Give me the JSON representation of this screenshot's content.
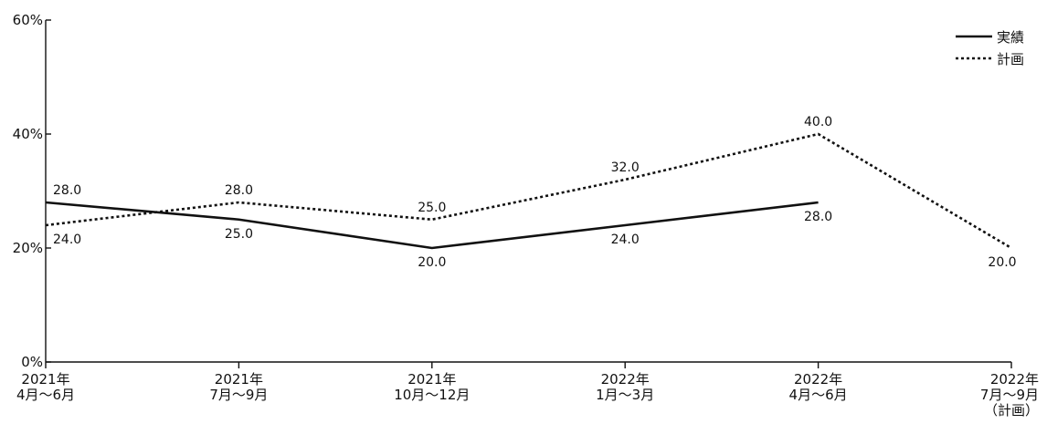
{
  "chart_data": {
    "type": "line",
    "title": "",
    "xlabel": "",
    "ylabel": "",
    "ylim": [
      0,
      60
    ],
    "y_ticks": [
      {
        "value": 0,
        "label": "0%"
      },
      {
        "value": 20,
        "label": "20%"
      },
      {
        "value": 40,
        "label": "40%"
      },
      {
        "value": 60,
        "label": "60%"
      }
    ],
    "categories": [
      [
        "2021年",
        "4月～6月"
      ],
      [
        "2021年",
        "7月～9月"
      ],
      [
        "2021年",
        "10月～12月"
      ],
      [
        "2022年",
        "1月～3月"
      ],
      [
        "2022年",
        "4月～6月"
      ],
      [
        "2022年",
        "7月～9月",
        "（計画）"
      ]
    ],
    "series": [
      {
        "name": "実績",
        "style": "solid",
        "values": [
          28.0,
          25.0,
          20.0,
          24.0,
          28.0,
          null
        ],
        "labels": [
          "28.0",
          "25.0",
          "20.0",
          "24.0",
          "28.0",
          null
        ]
      },
      {
        "name": "計画",
        "style": "dotted",
        "values": [
          24.0,
          28.0,
          25.0,
          32.0,
          40.0,
          20.0
        ],
        "labels": [
          "24.0",
          "28.0",
          "25.0",
          "32.0",
          "40.0",
          "20.0"
        ]
      }
    ],
    "grid": false,
    "legend_position": "top-right",
    "colors": {
      "line": "#111111",
      "axis": "#111111"
    }
  }
}
